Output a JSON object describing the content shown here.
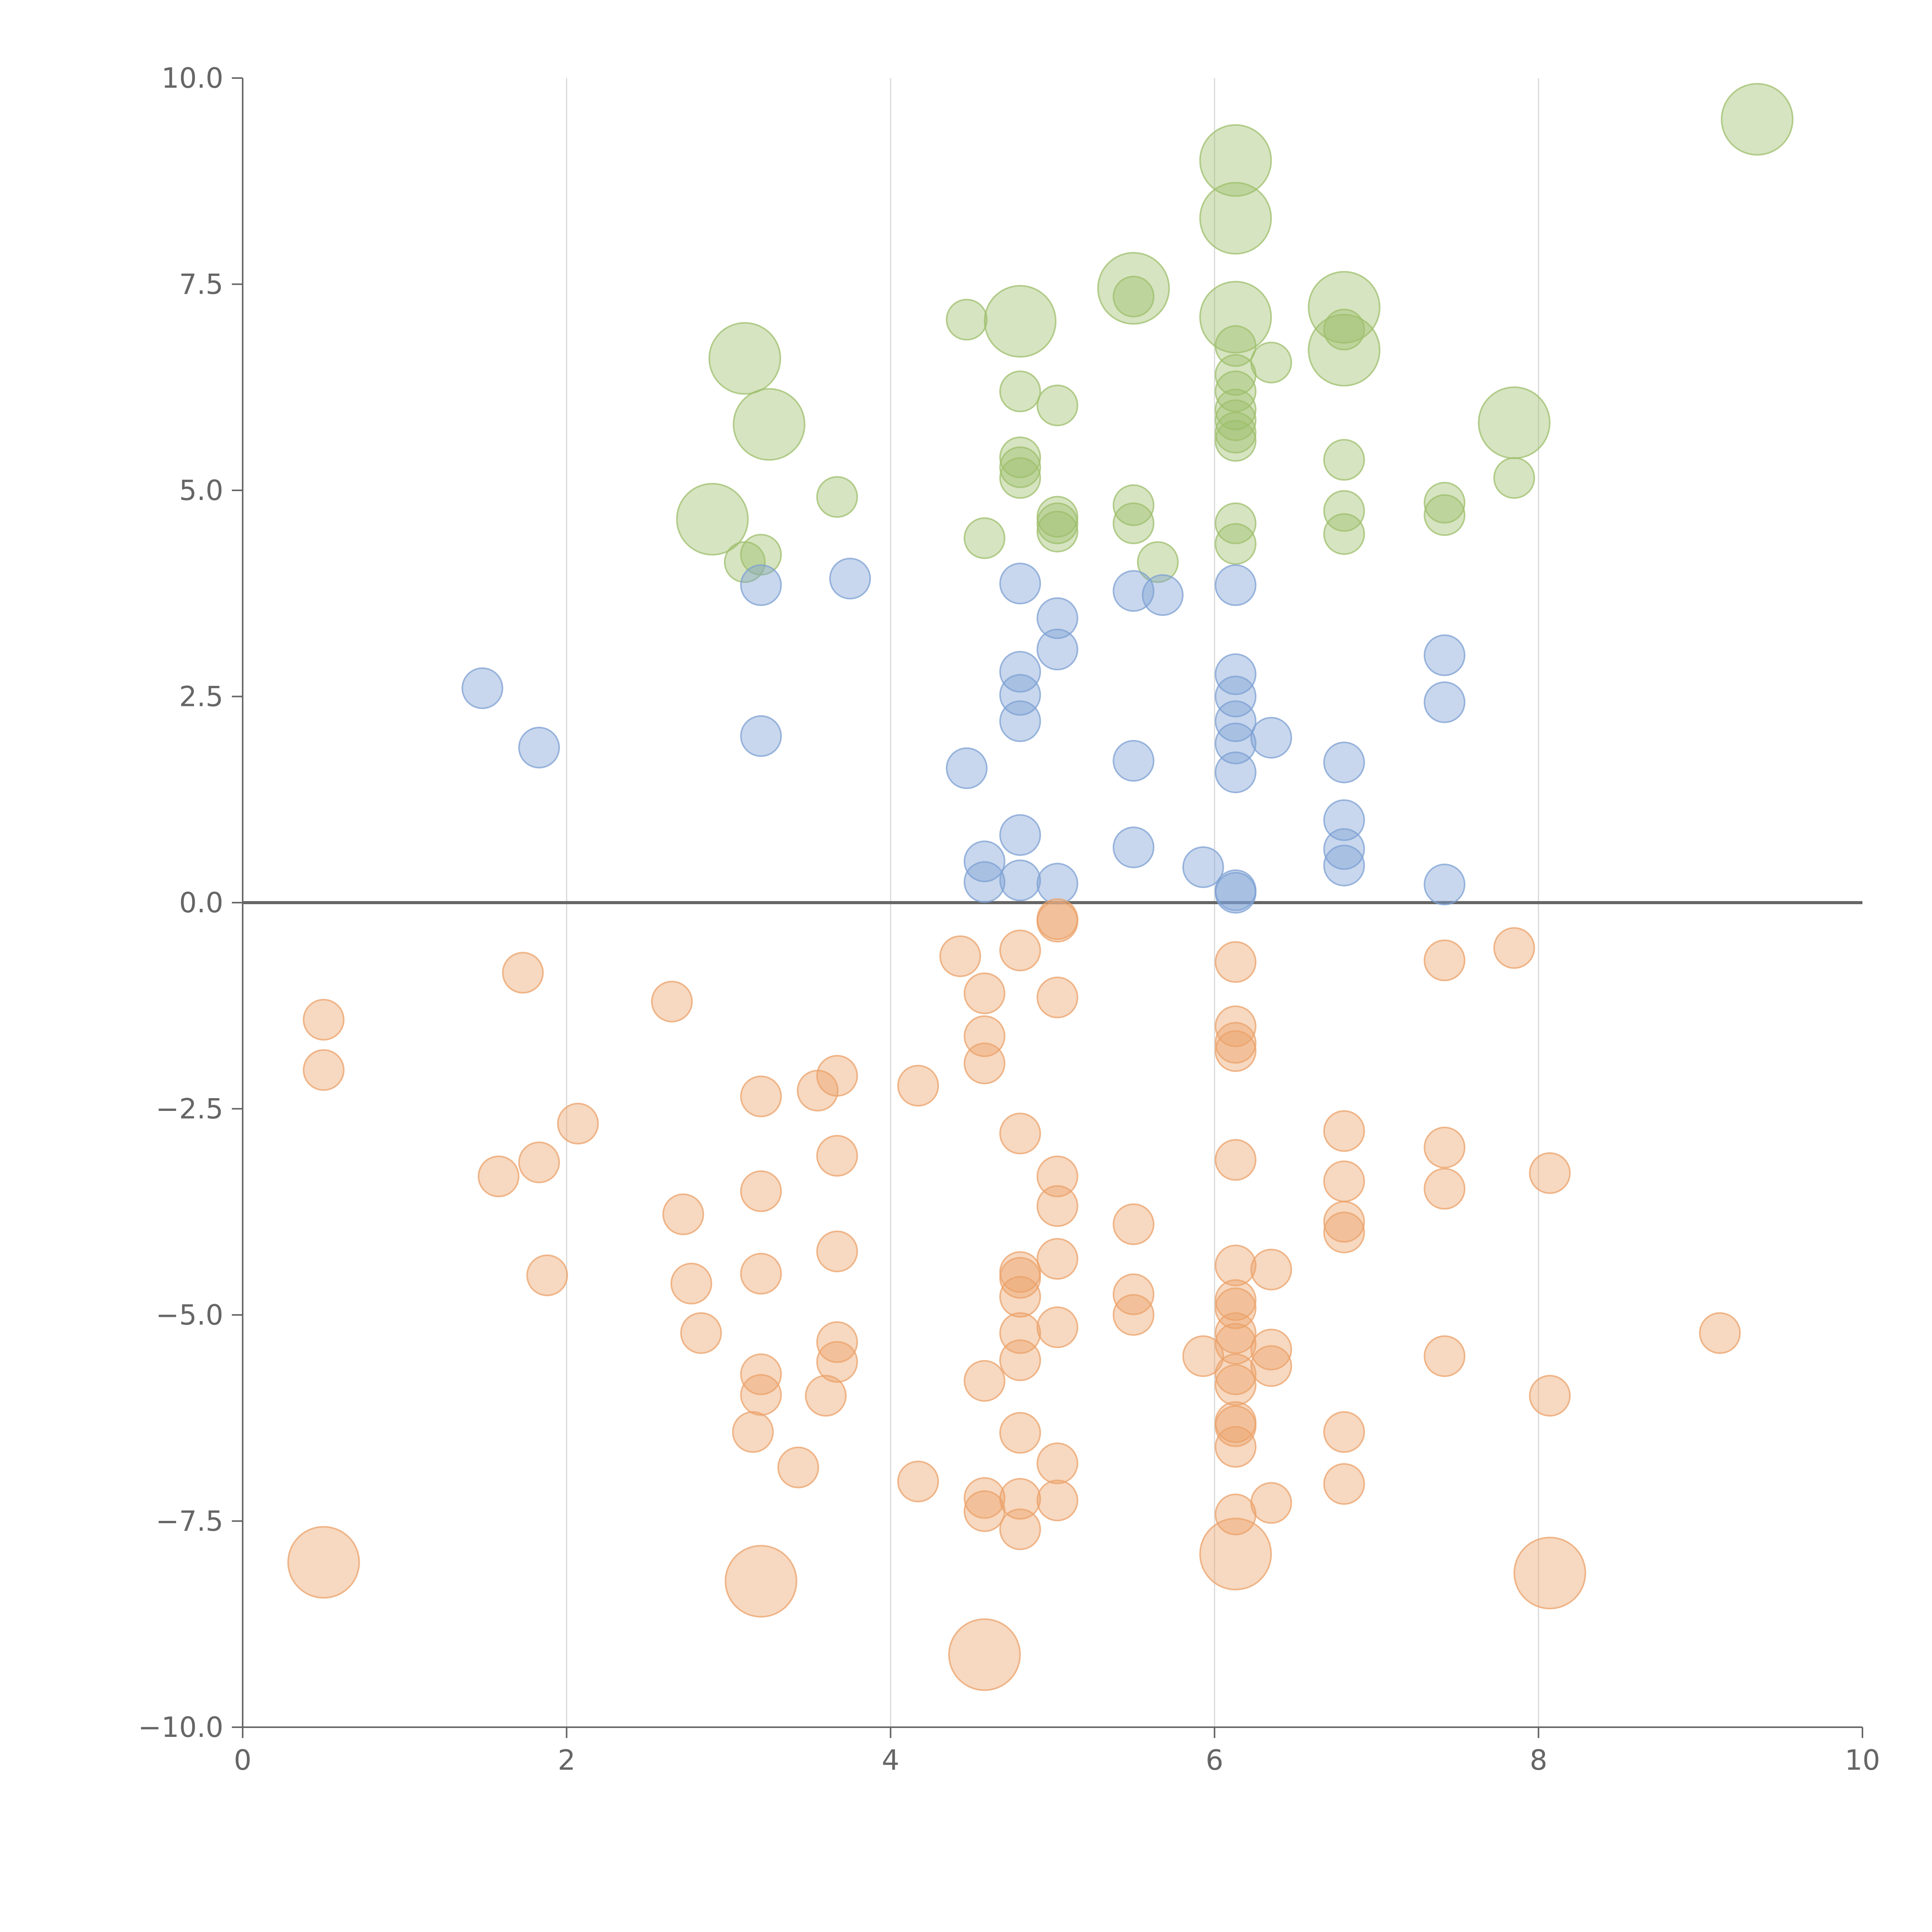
{
  "chart_data": {
    "type": "scatter",
    "title": "",
    "xlabel": "",
    "ylabel": "",
    "xlim": [
      0,
      10
    ],
    "ylim": [
      -10,
      10
    ],
    "xticks": [
      0,
      2,
      4,
      6,
      8,
      10
    ],
    "yticks": [
      -10,
      -7.5,
      -5,
      -2.5,
      0,
      2.5,
      5,
      7.5,
      10
    ],
    "xtick_labels": [
      "0",
      "2",
      "4",
      "6",
      "8",
      "10"
    ],
    "ytick_labels": [
      "−10.0",
      "−7.5",
      "−5.0",
      "−2.5",
      "0.0",
      "2.5",
      "5.0",
      "7.5",
      "10.0"
    ],
    "grid": {
      "vertical": true,
      "horizontal": false
    },
    "zero_line": true,
    "legend": "none",
    "series": [
      {
        "color": "#9dbf6b",
        "points": [
          [
            9.35,
            9.5,
            2
          ],
          [
            6.13,
            9.0,
            2
          ],
          [
            6.13,
            8.3,
            2
          ],
          [
            5.5,
            7.45,
            2
          ],
          [
            6.8,
            7.22,
            2
          ],
          [
            6.13,
            7.1,
            2
          ],
          [
            4.8,
            7.05,
            2
          ],
          [
            6.8,
            6.7,
            2
          ],
          [
            3.1,
            6.6,
            2
          ],
          [
            3.25,
            5.8,
            2
          ],
          [
            7.85,
            5.82,
            2
          ],
          [
            2.9,
            4.65,
            2
          ],
          [
            4.47,
            7.07,
            1
          ],
          [
            5.5,
            7.35,
            1
          ],
          [
            6.8,
            6.95,
            1
          ],
          [
            6.13,
            6.75,
            1
          ],
          [
            6.35,
            6.55,
            1
          ],
          [
            6.13,
            6.4,
            1
          ],
          [
            6.13,
            6.2,
            1
          ],
          [
            4.8,
            6.2,
            1
          ],
          [
            5.03,
            6.03,
            1
          ],
          [
            6.13,
            5.98,
            1
          ],
          [
            6.13,
            5.85,
            1
          ],
          [
            6.13,
            5.7,
            1
          ],
          [
            6.13,
            5.6,
            1
          ],
          [
            4.8,
            5.4,
            1
          ],
          [
            4.8,
            5.28,
            1
          ],
          [
            4.8,
            5.15,
            1
          ],
          [
            6.8,
            5.37,
            1
          ],
          [
            7.85,
            5.15,
            1
          ],
          [
            3.67,
            4.92,
            1
          ],
          [
            7.42,
            4.85,
            1
          ],
          [
            5.5,
            4.82,
            1
          ],
          [
            6.8,
            4.75,
            1
          ],
          [
            7.42,
            4.7,
            1
          ],
          [
            5.03,
            4.68,
            1
          ],
          [
            5.03,
            4.6,
            1
          ],
          [
            5.5,
            4.6,
            1
          ],
          [
            6.13,
            4.6,
            1
          ],
          [
            5.03,
            4.5,
            1
          ],
          [
            6.8,
            4.47,
            1
          ],
          [
            4.58,
            4.42,
            1
          ],
          [
            6.13,
            4.35,
            1
          ],
          [
            3.2,
            4.22,
            1
          ],
          [
            3.1,
            4.13,
            1
          ],
          [
            5.65,
            4.13,
            1
          ]
        ]
      },
      {
        "color": "#7da0d3",
        "points": [
          [
            3.75,
            3.93,
            1
          ],
          [
            3.2,
            3.85,
            1
          ],
          [
            4.8,
            3.87,
            1
          ],
          [
            6.13,
            3.85,
            1
          ],
          [
            5.5,
            3.78,
            1
          ],
          [
            5.68,
            3.73,
            1
          ],
          [
            5.03,
            3.45,
            1
          ],
          [
            5.03,
            3.07,
            1
          ],
          [
            7.42,
            3.0,
            1
          ],
          [
            4.8,
            2.8,
            1
          ],
          [
            6.13,
            2.77,
            1
          ],
          [
            1.48,
            2.6,
            1
          ],
          [
            4.8,
            2.52,
            1
          ],
          [
            6.13,
            2.5,
            1
          ],
          [
            7.42,
            2.43,
            1
          ],
          [
            4.8,
            2.2,
            1
          ],
          [
            6.13,
            2.2,
            1
          ],
          [
            3.2,
            2.02,
            1
          ],
          [
            6.35,
            2.0,
            1
          ],
          [
            6.13,
            1.93,
            1
          ],
          [
            1.83,
            1.88,
            1
          ],
          [
            5.5,
            1.72,
            1
          ],
          [
            6.8,
            1.7,
            1
          ],
          [
            4.47,
            1.63,
            1
          ],
          [
            6.13,
            1.58,
            1
          ],
          [
            6.8,
            1.0,
            1
          ],
          [
            4.8,
            0.82,
            1
          ],
          [
            5.5,
            0.67,
            1
          ],
          [
            6.8,
            0.65,
            1
          ],
          [
            4.58,
            0.5,
            1
          ],
          [
            6.8,
            0.45,
            1
          ],
          [
            5.93,
            0.43,
            1
          ],
          [
            4.58,
            0.25,
            1
          ],
          [
            4.8,
            0.27,
            1
          ],
          [
            5.03,
            0.23,
            1
          ],
          [
            7.42,
            0.22,
            1
          ],
          [
            6.13,
            0.15,
            1
          ],
          [
            6.13,
            0.12,
            1
          ]
        ]
      },
      {
        "color": "#eba26a",
        "points": [
          [
            5.03,
            -0.2,
            1
          ],
          [
            5.03,
            -0.23,
            1
          ],
          [
            7.85,
            -0.55,
            1
          ],
          [
            4.8,
            -0.58,
            1
          ],
          [
            4.43,
            -0.65,
            1
          ],
          [
            7.42,
            -0.7,
            1
          ],
          [
            6.13,
            -0.72,
            1
          ],
          [
            1.73,
            -0.85,
            1
          ],
          [
            4.58,
            -1.1,
            1
          ],
          [
            5.03,
            -1.15,
            1
          ],
          [
            2.65,
            -1.2,
            1
          ],
          [
            0.5,
            -1.42,
            1
          ],
          [
            6.13,
            -1.5,
            1
          ],
          [
            4.58,
            -1.62,
            1
          ],
          [
            6.13,
            -1.7,
            1
          ],
          [
            6.13,
            -1.8,
            1
          ],
          [
            4.58,
            -1.95,
            1
          ],
          [
            0.5,
            -2.03,
            1
          ],
          [
            3.67,
            -2.1,
            1
          ],
          [
            4.17,
            -2.22,
            1
          ],
          [
            3.55,
            -2.28,
            1
          ],
          [
            3.2,
            -2.35,
            1
          ],
          [
            2.07,
            -2.68,
            1
          ],
          [
            6.8,
            -2.77,
            1
          ],
          [
            4.8,
            -2.8,
            1
          ],
          [
            7.42,
            -2.97,
            1
          ],
          [
            3.67,
            -3.07,
            1
          ],
          [
            6.13,
            -3.12,
            1
          ],
          [
            1.83,
            -3.15,
            1
          ],
          [
            8.07,
            -3.28,
            1
          ],
          [
            1.58,
            -3.32,
            1
          ],
          [
            5.03,
            -3.32,
            1
          ],
          [
            6.8,
            -3.38,
            1
          ],
          [
            7.42,
            -3.47,
            1
          ],
          [
            3.2,
            -3.5,
            1
          ],
          [
            5.03,
            -3.68,
            1
          ],
          [
            2.72,
            -3.78,
            1
          ],
          [
            6.8,
            -3.87,
            1
          ],
          [
            5.5,
            -3.9,
            1
          ],
          [
            6.8,
            -4.0,
            1
          ],
          [
            3.67,
            -4.23,
            1
          ],
          [
            5.03,
            -4.32,
            1
          ],
          [
            6.13,
            -4.4,
            1
          ],
          [
            6.35,
            -4.45,
            1
          ],
          [
            4.8,
            -4.48,
            1
          ],
          [
            3.2,
            -4.5,
            1
          ],
          [
            1.88,
            -4.52,
            1
          ],
          [
            4.8,
            -4.55,
            1
          ],
          [
            2.77,
            -4.62,
            1
          ],
          [
            5.5,
            -4.75,
            1
          ],
          [
            4.8,
            -4.78,
            1
          ],
          [
            6.13,
            -4.82,
            1
          ],
          [
            6.13,
            -4.92,
            1
          ],
          [
            5.5,
            -5.0,
            1
          ],
          [
            5.03,
            -5.15,
            1
          ],
          [
            9.12,
            -5.22,
            1
          ],
          [
            2.83,
            -5.22,
            1
          ],
          [
            4.8,
            -5.22,
            1
          ],
          [
            6.13,
            -5.22,
            1
          ],
          [
            3.67,
            -5.33,
            1
          ],
          [
            6.13,
            -5.35,
            1
          ],
          [
            6.35,
            -5.42,
            1
          ],
          [
            7.42,
            -5.5,
            1
          ],
          [
            5.93,
            -5.5,
            1
          ],
          [
            4.8,
            -5.55,
            1
          ],
          [
            3.67,
            -5.57,
            1
          ],
          [
            6.35,
            -5.62,
            1
          ],
          [
            3.2,
            -5.72,
            1
          ],
          [
            6.13,
            -5.72,
            1
          ],
          [
            4.58,
            -5.8,
            1
          ],
          [
            6.13,
            -5.85,
            1
          ],
          [
            3.2,
            -5.97,
            1
          ],
          [
            3.6,
            -5.98,
            1
          ],
          [
            8.07,
            -5.98,
            1
          ],
          [
            6.13,
            -6.3,
            1
          ],
          [
            6.13,
            -6.35,
            1
          ],
          [
            3.15,
            -6.42,
            1
          ],
          [
            4.8,
            -6.43,
            1
          ],
          [
            6.8,
            -6.42,
            1
          ],
          [
            6.13,
            -6.6,
            1
          ],
          [
            5.03,
            -6.8,
            1
          ],
          [
            3.43,
            -6.85,
            1
          ],
          [
            4.17,
            -7.02,
            1
          ],
          [
            6.8,
            -7.05,
            1
          ],
          [
            4.58,
            -7.22,
            1
          ],
          [
            4.8,
            -7.23,
            1
          ],
          [
            5.03,
            -7.25,
            1
          ],
          [
            6.35,
            -7.28,
            1
          ],
          [
            4.58,
            -7.38,
            1
          ],
          [
            6.13,
            -7.42,
            1
          ],
          [
            4.8,
            -7.6,
            1
          ],
          [
            0.5,
            -8.0,
            2
          ],
          [
            6.13,
            -7.9,
            2
          ],
          [
            8.07,
            -8.13,
            2
          ],
          [
            3.2,
            -8.23,
            2
          ],
          [
            4.58,
            -9.12,
            2
          ]
        ]
      }
    ]
  }
}
